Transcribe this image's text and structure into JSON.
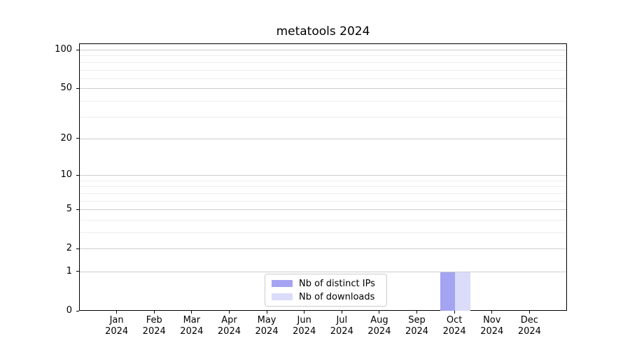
{
  "chart_data": {
    "type": "bar",
    "title": "metatools 2024",
    "x": {
      "months": [
        "Jan",
        "Feb",
        "Mar",
        "Apr",
        "May",
        "Jun",
        "Jul",
        "Aug",
        "Sep",
        "Oct",
        "Nov",
        "Dec"
      ],
      "year": "2024"
    },
    "yscale": "log1p",
    "ylim": [
      0,
      112
    ],
    "yticks": [
      0,
      1,
      2,
      5,
      10,
      20,
      50,
      100
    ],
    "yticks_minor": [
      3,
      4,
      6,
      7,
      8,
      9,
      30,
      40,
      60,
      70,
      80,
      90
    ],
    "grid": "horizontal",
    "legend_position": "inside-bottom-center",
    "series": [
      {
        "name": "Nb of distinct IPs",
        "color": "#a4a4f2",
        "values": [
          0,
          0,
          0,
          0,
          0,
          0,
          0,
          0,
          0,
          1,
          0,
          0
        ]
      },
      {
        "name": "Nb of downloads",
        "color": "#dbdbfa",
        "values": [
          0,
          0,
          0,
          0,
          0,
          0,
          0,
          0,
          0,
          1,
          0,
          0
        ]
      }
    ]
  }
}
